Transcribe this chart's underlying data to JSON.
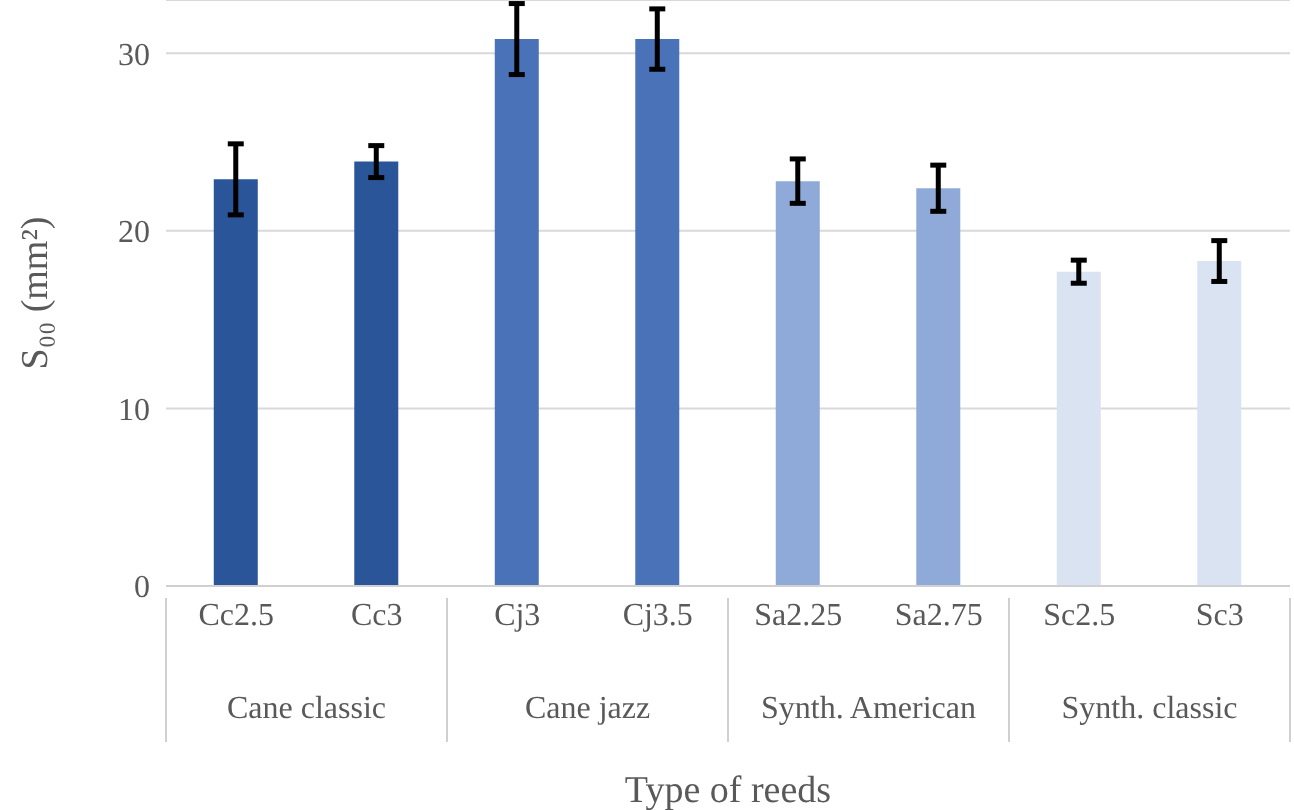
{
  "chart_data": {
    "type": "bar",
    "xlabel": "Type of reeds",
    "ylabel": "S₀₀ (mm²)",
    "categories": [
      "Cc2.5",
      "Cc3",
      "Cj3",
      "Cj3.5",
      "Sa2.25",
      "Sa2.75",
      "Sc2.5",
      "Sc3"
    ],
    "values": [
      22.9,
      23.9,
      30.8,
      30.8,
      22.8,
      22.4,
      17.7,
      18.3
    ],
    "errors": [
      2.0,
      0.9,
      2.0,
      1.7,
      1.25,
      1.3,
      0.65,
      1.15
    ],
    "colors": [
      "#2a5699",
      "#2a5699",
      "#4a72b8",
      "#4a72b8",
      "#8faad8",
      "#8faad8",
      "#dae3f2",
      "#dae3f2"
    ],
    "annotations": [
      "Cane classic",
      "Cane jazz",
      "Synth. American",
      "Synth. classic"
    ],
    "ylim": [
      0,
      33
    ],
    "yticks": [
      0,
      10,
      20,
      30
    ],
    "grid": "y"
  }
}
